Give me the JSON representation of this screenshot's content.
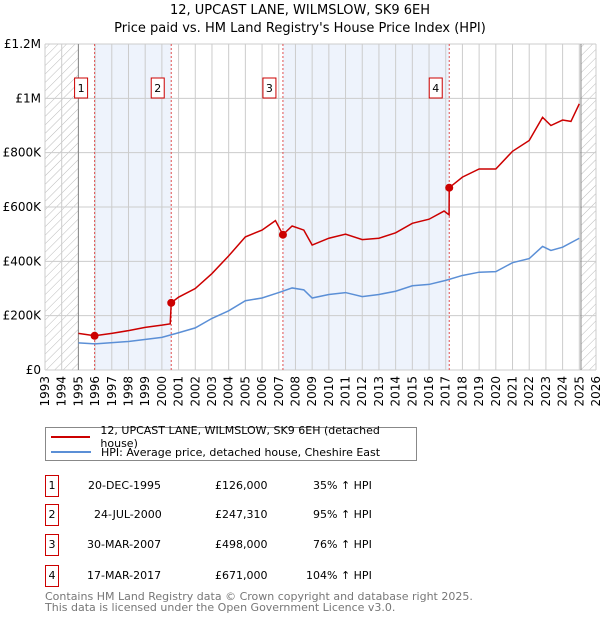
{
  "title": "12, UPCAST LANE, WILMSLOW, SK9 6EH",
  "subtitle": "Price paid vs. HM Land Registry's House Price Index (HPI)",
  "colors": {
    "price": "#cc0000",
    "hpi": "#5b8fd6",
    "band": "#eef3fc",
    "grid": "#cccccc"
  },
  "chart_data": {
    "type": "line",
    "title": "12, UPCAST LANE, WILMSLOW, SK9 6EH",
    "xlim": [
      1993,
      2026
    ],
    "ylim": [
      0,
      1200000
    ],
    "x_ticks": [
      "1993",
      "1994",
      "1995",
      "1996",
      "1997",
      "1998",
      "1999",
      "2000",
      "2001",
      "2002",
      "2003",
      "2004",
      "2005",
      "2006",
      "2007",
      "2008",
      "2009",
      "2010",
      "2011",
      "2012",
      "2013",
      "2014",
      "2015",
      "2016",
      "2017",
      "2018",
      "2019",
      "2020",
      "2021",
      "2022",
      "2023",
      "2024",
      "2025",
      "2026"
    ],
    "y_ticks": [
      {
        "v": 0,
        "label": "£0"
      },
      {
        "v": 200000,
        "label": "£200K"
      },
      {
        "v": 400000,
        "label": "£400K"
      },
      {
        "v": 600000,
        "label": "£600K"
      },
      {
        "v": 800000,
        "label": "£800K"
      },
      {
        "v": 1000000,
        "label": "£1M"
      },
      {
        "v": 1200000,
        "label": "£1.2M"
      }
    ],
    "series": [
      {
        "name": "12, UPCAST LANE, WILMSLOW, SK9 6EH (detached house)",
        "x": [
          1995.0,
          1995.97,
          1997,
          1998,
          1999,
          2000,
          2000.5,
          2000.56,
          2001,
          2002,
          2003,
          2004,
          2005,
          2006,
          2006.8,
          2007.25,
          2007.8,
          2008.5,
          2009,
          2010,
          2011,
          2012,
          2013,
          2014,
          2015,
          2016,
          2016.9,
          2017.2,
          2017.21,
          2018,
          2019,
          2020,
          2021,
          2022,
          2022.8,
          2023.3,
          2024,
          2024.5,
          2025
        ],
        "y": [
          135000,
          126000,
          135000,
          145000,
          157000,
          165000,
          170000,
          247310,
          268000,
          300000,
          355000,
          420000,
          490000,
          515000,
          550000,
          498000,
          530000,
          515000,
          460000,
          485000,
          500000,
          480000,
          485000,
          505000,
          540000,
          555000,
          585000,
          571000,
          671000,
          710000,
          740000,
          740000,
          805000,
          845000,
          930000,
          900000,
          920000,
          915000,
          980000
        ]
      },
      {
        "name": "HPI: Average price, detached house, Cheshire East",
        "x": [
          1995,
          1996,
          1998,
          2000,
          2001,
          2002,
          2003,
          2004,
          2005,
          2006,
          2007,
          2007.8,
          2008.5,
          2009,
          2010,
          2011,
          2012,
          2013,
          2014,
          2015,
          2016,
          2017,
          2018,
          2019,
          2020,
          2021,
          2022,
          2022.8,
          2023.3,
          2024,
          2025
        ],
        "y": [
          100000,
          96000,
          105000,
          120000,
          137000,
          155000,
          190000,
          218000,
          255000,
          265000,
          285000,
          302000,
          295000,
          265000,
          278000,
          285000,
          270000,
          278000,
          290000,
          310000,
          315000,
          330000,
          348000,
          360000,
          362000,
          395000,
          410000,
          455000,
          440000,
          452000,
          485000
        ]
      }
    ],
    "sales": [
      {
        "label": "1",
        "x": 1995.97,
        "y": 126000,
        "date": "20-DEC-1995",
        "price": "£126,000",
        "hpi": "35% ↑ HPI"
      },
      {
        "label": "2",
        "x": 2000.56,
        "y": 247310,
        "date": "24-JUL-2000",
        "price": "£247,310",
        "hpi": "95% ↑ HPI"
      },
      {
        "label": "3",
        "x": 2007.25,
        "y": 498000,
        "date": "30-MAR-2007",
        "price": "£498,000",
        "hpi": "76% ↑ HPI"
      },
      {
        "label": "4",
        "x": 2017.21,
        "y": 671000,
        "date": "17-MAR-2017",
        "price": "£671,000",
        "hpi": "104% ↑ HPI"
      }
    ],
    "data_start": 1995,
    "data_end": 2025.1
  },
  "legend": {
    "price": "12, UPCAST LANE, WILMSLOW, SK9 6EH (detached house)",
    "hpi": "HPI: Average price, detached house, Cheshire East"
  },
  "footer": [
    "Contains HM Land Registry data © Crown copyright and database right 2025.",
    "This data is licensed under the Open Government Licence v3.0."
  ]
}
